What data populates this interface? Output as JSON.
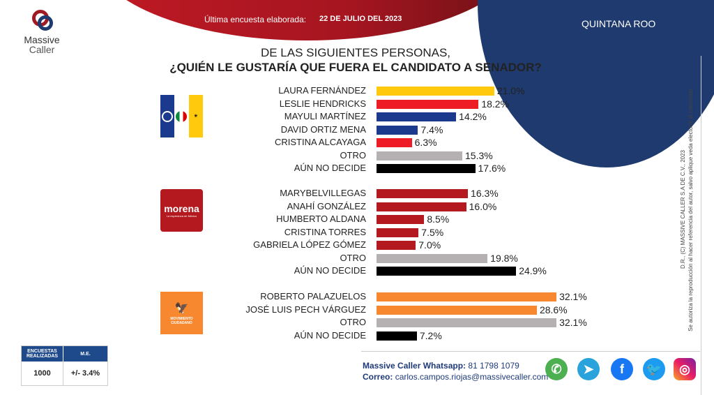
{
  "header": {
    "survey_label": "Última encuesta elaborada:",
    "survey_date": "22 DE JULIO DEL 2023",
    "state": "QUINTANA ROO",
    "logo_line1": "Massive",
    "logo_line2": "Caller"
  },
  "question": {
    "line1": "DE LAS SIGUIENTES PERSONAS,",
    "line2": "¿QUIÉN LE GUSTARÍA QUE FUERA EL CANDIDATO  A SENADOR?"
  },
  "colors": {
    "yellow": "#FFC90E",
    "red": "#EE1C25",
    "blue": "#1B3A8E",
    "morena": "#B3191E",
    "mc": "#F7882F",
    "otro": "#B5B1B3",
    "nodecide": "#000000"
  },
  "chart_data": {
    "type": "bar",
    "orientation": "horizontal",
    "unit": "%",
    "groups": [
      {
        "party": "PAN-PRI-PRD",
        "logo_text": "PAN PRI PRD",
        "bars": [
          {
            "label": "LAURA FERNÁNDEZ",
            "value": 21.0,
            "display": "21.0%",
            "color": "#FFC90E"
          },
          {
            "label": "LESLIE HENDRICKS",
            "value": 18.2,
            "display": "18.2%",
            "color": "#EE1C25"
          },
          {
            "label": "MAYULI MARTÍNEZ",
            "value": 14.2,
            "display": "14.2%",
            "color": "#1B3A8E"
          },
          {
            "label": "DAVID ORTIZ MENA",
            "value": 7.4,
            "display": "7.4%",
            "color": "#1B3A8E"
          },
          {
            "label": "CRISTINA ALCAYAGA",
            "value": 6.3,
            "display": "6.3%",
            "color": "#EE1C25"
          },
          {
            "label": "OTRO",
            "value": 15.3,
            "display": "15.3%",
            "color": "#B5B1B3"
          },
          {
            "label": "AÚN NO DECIDE",
            "value": 17.6,
            "display": "17.6%",
            "color": "#000000"
          }
        ]
      },
      {
        "party": "MORENA",
        "logo_text": "morena",
        "logo_sub": "La esperanza de México",
        "bars": [
          {
            "label": "MARYBELVILLEGAS",
            "value": 16.3,
            "display": "16.3%",
            "color": "#B3191E"
          },
          {
            "label": "ANAHÍ GONZÁLEZ",
            "value": 16.0,
            "display": "16.0%",
            "color": "#B3191E"
          },
          {
            "label": "HUMBERTO ALDANA",
            "value": 8.5,
            "display": "8.5%",
            "color": "#B3191E"
          },
          {
            "label": "CRISTINA TORRES",
            "value": 7.5,
            "display": "7.5%",
            "color": "#B3191E"
          },
          {
            "label": "GABRIELA LÓPEZ GÓMEZ",
            "value": 7.0,
            "display": "7.0%",
            "color": "#B3191E"
          },
          {
            "label": "OTRO",
            "value": 19.8,
            "display": "19.8%",
            "color": "#B5B1B3"
          },
          {
            "label": "AÚN NO DECIDE",
            "value": 24.9,
            "display": "24.9%",
            "color": "#000000"
          }
        ]
      },
      {
        "party": "MOVIMIENTO CIUDADANO",
        "logo_text": "MOVIMIENTO CIUDADANO",
        "bars": [
          {
            "label": "ROBERTO PALAZUELOS",
            "value": 32.1,
            "display": "32.1%",
            "color": "#F7882F"
          },
          {
            "label": "JOSÉ LUIS PECH VÁRGUEZ",
            "value": 28.6,
            "display": "28.6%",
            "color": "#F7882F"
          },
          {
            "label": "OTRO",
            "value": 32.1,
            "display": "32.1%",
            "color": "#B5B1B3"
          },
          {
            "label": "AÚN NO DECIDE",
            "value": 7.2,
            "display": "7.2%",
            "color": "#000000"
          }
        ]
      }
    ]
  },
  "sample": {
    "h1": "ENCUESTAS REALIZADAS",
    "h2": "M.E.",
    "count": "1000",
    "margin": "+/- 3.4%"
  },
  "legal": {
    "line1": "D.R., (C) MASSIVE CALLER S.A DE C.V., 2023",
    "line2": "Se autoriza la reproducción al hacer referencia del autor, salvo aplique veda electoral al contenido."
  },
  "footer": {
    "whatsapp_label": "Massive Caller Whatsapp:",
    "whatsapp": "81 1798 1079",
    "email_label": "Correo:",
    "email": "carlos.campos.riojas@massivecaller.com"
  },
  "social": [
    "whatsapp-icon",
    "telegram-icon",
    "facebook-icon",
    "twitter-icon",
    "instagram-icon"
  ]
}
